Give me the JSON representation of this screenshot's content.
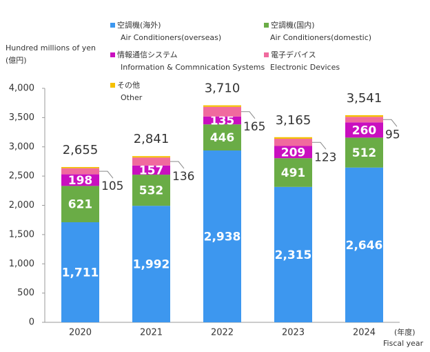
{
  "chart_data": {
    "type": "stacked-bar",
    "y_axis_title": "Hundred millions of yen",
    "y_axis_unit": "(億円)",
    "x_axis_unit": "(年度)",
    "x_axis_title": "Fiscal year",
    "categories": [
      "2020",
      "2021",
      "2022",
      "2023",
      "2024"
    ],
    "series": [
      {
        "name": "空調機(海外)",
        "name_en": "Air Conditioners(overseas)",
        "color": "#3d97ef",
        "labels": "inside",
        "values": [
          1711,
          1992,
          2938,
          2315,
          2646
        ],
        "value_labels": [
          "1,711",
          "1,992",
          "2,938",
          "2,315",
          "2,646"
        ]
      },
      {
        "name": "空調機(国内)",
        "name_en": "Air Conditioners(domestic)",
        "color": "#6aac46",
        "labels": "inside",
        "values": [
          621,
          532,
          446,
          491,
          512
        ]
      },
      {
        "name": "情報通信システム",
        "name_en": "Information & Commnication Systems",
        "color": "#c90fbf",
        "labels": "inside",
        "values": [
          198,
          157,
          135,
          209,
          260
        ]
      },
      {
        "name": "電子デバイス",
        "name_en": "Electronic Devices",
        "color": "#f06a9e",
        "labels": "callout",
        "values": [
          105,
          136,
          165,
          123,
          95
        ]
      },
      {
        "name": "その他",
        "name_en": "Other",
        "color": "#f5c000",
        "values": [
          20,
          24,
          26,
          27,
          28
        ]
      }
    ],
    "totals": [
      2655,
      2841,
      3710,
      3165,
      3541
    ],
    "total_labels": [
      "2,655",
      "2,841",
      "3,710",
      "3,165",
      "3,541"
    ],
    "ylim": [
      0,
      4000
    ],
    "yticks": [
      0,
      500,
      {
        "value": 1000,
        "label": "1,000"
      },
      {
        "value": 1500,
        "label": "1,500"
      },
      {
        "value": 2000,
        "label": "2,000"
      },
      {
        "value": 2500,
        "label": "2,500"
      },
      {
        "value": 3000,
        "label": "3,000"
      },
      {
        "value": 3500,
        "label": "3,500"
      },
      {
        "value": 4000,
        "label": "4,000"
      }
    ]
  }
}
